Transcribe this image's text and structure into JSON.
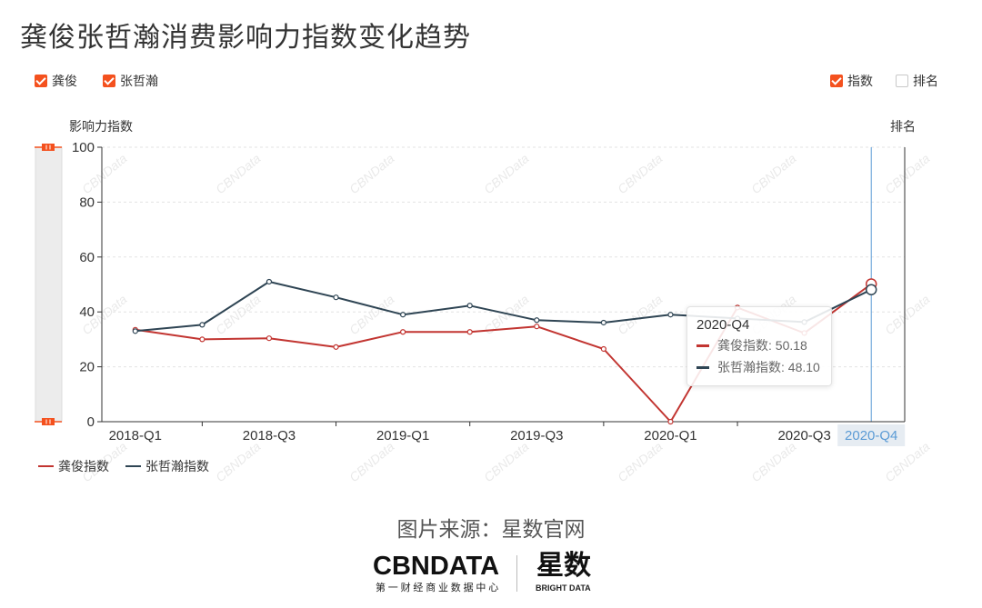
{
  "title": "龚俊张哲瀚消费影响力指数变化趋势",
  "legend_top_left": [
    {
      "label": "龚俊",
      "checked": true
    },
    {
      "label": "张哲瀚",
      "checked": true
    }
  ],
  "legend_top_right": [
    {
      "label": "指数",
      "checked": true
    },
    {
      "label": "排名",
      "checked": false
    }
  ],
  "colors": {
    "accent": "#f4511e",
    "axis_pointer": "#5b9bd5",
    "axis_pointer_label_bg": "#e6ecf2"
  },
  "chart_data": {
    "type": "line",
    "ylabel": "影响力指数",
    "ylabel_right": "排名",
    "ylim": [
      0,
      100
    ],
    "yticks": [
      0,
      20,
      40,
      60,
      80,
      100
    ],
    "categories": [
      "2018-Q1",
      "",
      "2018-Q3",
      "",
      "2019-Q1",
      "",
      "2019-Q3",
      "",
      "2020-Q1",
      "",
      "2020-Q3",
      "2020-Q4"
    ],
    "series": [
      {
        "name": "龚俊指数",
        "color": "#c23531",
        "values": [
          33.5,
          30.0,
          30.4,
          27.2,
          32.7,
          32.7,
          34.7,
          26.5,
          0,
          41.6,
          32.3,
          50.18
        ]
      },
      {
        "name": "张哲瀚指数",
        "color": "#2f4554",
        "values": [
          33.0,
          35.3,
          51.0,
          45.3,
          39.0,
          42.3,
          37.0,
          36.1,
          39.0,
          37.6,
          36.3,
          48.1
        ]
      }
    ],
    "grid": true,
    "legend_position": "bottom-left"
  },
  "axis_pointer": {
    "category_index": 11
  },
  "tooltip": {
    "title": "2020-Q4",
    "rows": [
      {
        "text": "龚俊指数: 50.18"
      },
      {
        "text": "张哲瀚指数: 48.10"
      }
    ]
  },
  "data_zoom": {
    "start_percent": 0,
    "end_percent": 100
  },
  "watermark": {
    "text": "CBNData"
  },
  "source_note": "图片来源：星数官网",
  "logo": {
    "primary": "CBNDATA",
    "primary_sub": "第一财经商业数据中心",
    "secondary": "星数",
    "secondary_sub": "BRIGHT DATA"
  }
}
